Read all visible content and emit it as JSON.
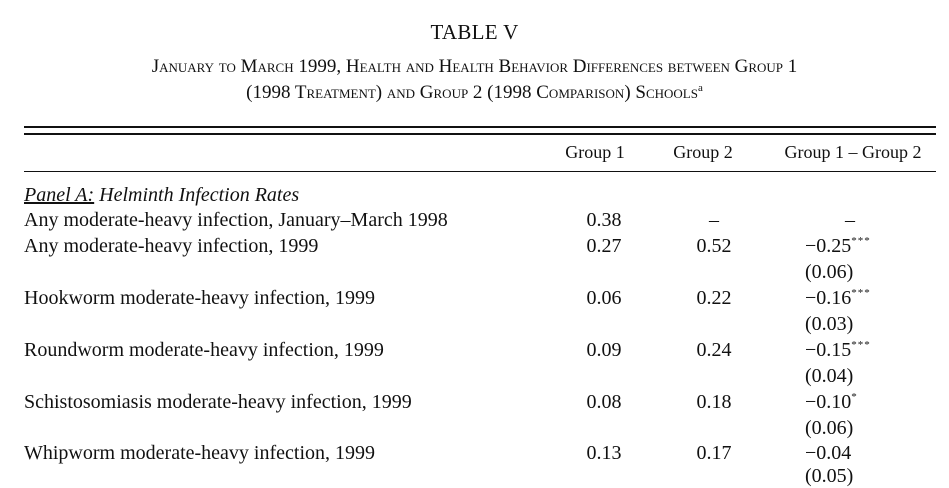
{
  "table": {
    "number": "TABLE V",
    "title_line1": "January to March 1999, Health and Health Behavior Differences between Group 1",
    "title_line2": "(1998 Treatment) and Group 2 (1998 Comparison) Schools",
    "title_note": "a",
    "columns": [
      "Group 1",
      "Group 2",
      "Group 1 – Group 2"
    ]
  },
  "panel": {
    "label": "Panel A:",
    "title": " Helminth Infection Rates"
  },
  "rows": [
    {
      "label": "Any moderate-heavy infection, January–March 1998",
      "group1": "0.38",
      "group2": "–",
      "diff": "–",
      "stars": "",
      "se": ""
    },
    {
      "label": "Any moderate-heavy infection, 1999",
      "group1": "0.27",
      "group2": "0.52",
      "diff": "−0.25",
      "stars": "***",
      "se": "(0.06)"
    },
    {
      "label": "Hookworm moderate-heavy infection, 1999",
      "group1": "0.06",
      "group2": "0.22",
      "diff": "−0.16",
      "stars": "***",
      "se": "(0.03)"
    },
    {
      "label": "Roundworm moderate-heavy infection, 1999",
      "group1": "0.09",
      "group2": "0.24",
      "diff": "−0.15",
      "stars": "***",
      "se": "(0.04)"
    },
    {
      "label": "Schistosomiasis moderate-heavy infection, 1999",
      "group1": "0.08",
      "group2": "0.18",
      "diff": "−0.10",
      "stars": "*",
      "se": "(0.06)"
    },
    {
      "label": "Whipworm moderate-heavy infection, 1999",
      "group1": "0.13",
      "group2": "0.17",
      "diff": "−0.04",
      "stars": "",
      "se": "(0.05)"
    }
  ]
}
